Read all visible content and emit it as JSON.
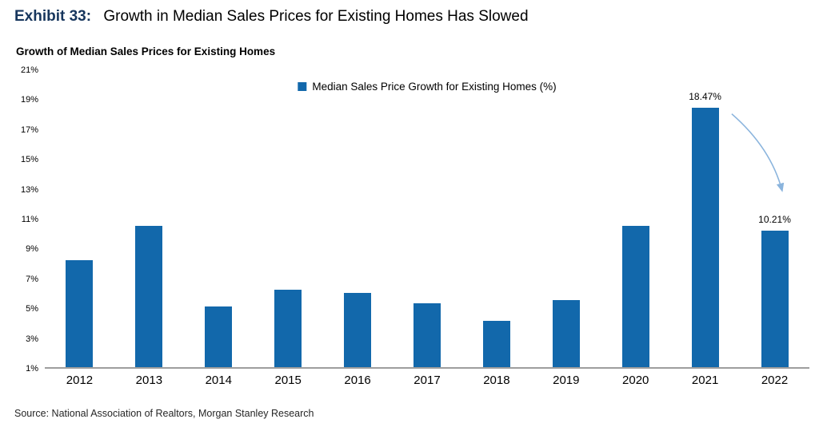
{
  "header": {
    "exhibit_label": "Exhibit 33:",
    "title": "Growth in Median Sales Prices for Existing Homes Has Slowed"
  },
  "chart": {
    "title": "Growth of Median Sales Prices for Existing Homes",
    "legend_label": "Median Sales Price Growth for Existing Homes (%)"
  },
  "footer": {
    "source": "Source: National Association of Realtors, Morgan Stanley Research"
  },
  "chart_data": {
    "type": "bar",
    "title": "Growth of Median Sales Prices for Existing Homes",
    "legend": [
      "Median Sales Price Growth for Existing Homes (%)"
    ],
    "legend_position": "top-center",
    "categories": [
      "2012",
      "2013",
      "2014",
      "2015",
      "2016",
      "2017",
      "2018",
      "2019",
      "2020",
      "2021",
      "2022"
    ],
    "values": [
      8.2,
      10.5,
      5.1,
      6.2,
      6.0,
      5.3,
      4.1,
      5.5,
      10.5,
      18.47,
      10.21
    ],
    "xlabel": "",
    "ylabel": "",
    "ylim": [
      1,
      21
    ],
    "yticks": [
      1,
      3,
      5,
      7,
      9,
      11,
      13,
      15,
      17,
      19,
      21
    ],
    "ytick_suffix": "%",
    "grid": false,
    "data_labels": [
      {
        "category": "2021",
        "text": "18.47%"
      },
      {
        "category": "2022",
        "text": "10.21%"
      }
    ],
    "annotations": [
      {
        "type": "arrow",
        "from_category": "2021",
        "to_category": "2022",
        "description": "light blue arrow pointing down from 2021 peak label to 2022 value label"
      }
    ],
    "colors": {
      "bar": "#1268ab",
      "arrow": "#8ab4dd",
      "axis": "#9e9e9e"
    }
  }
}
